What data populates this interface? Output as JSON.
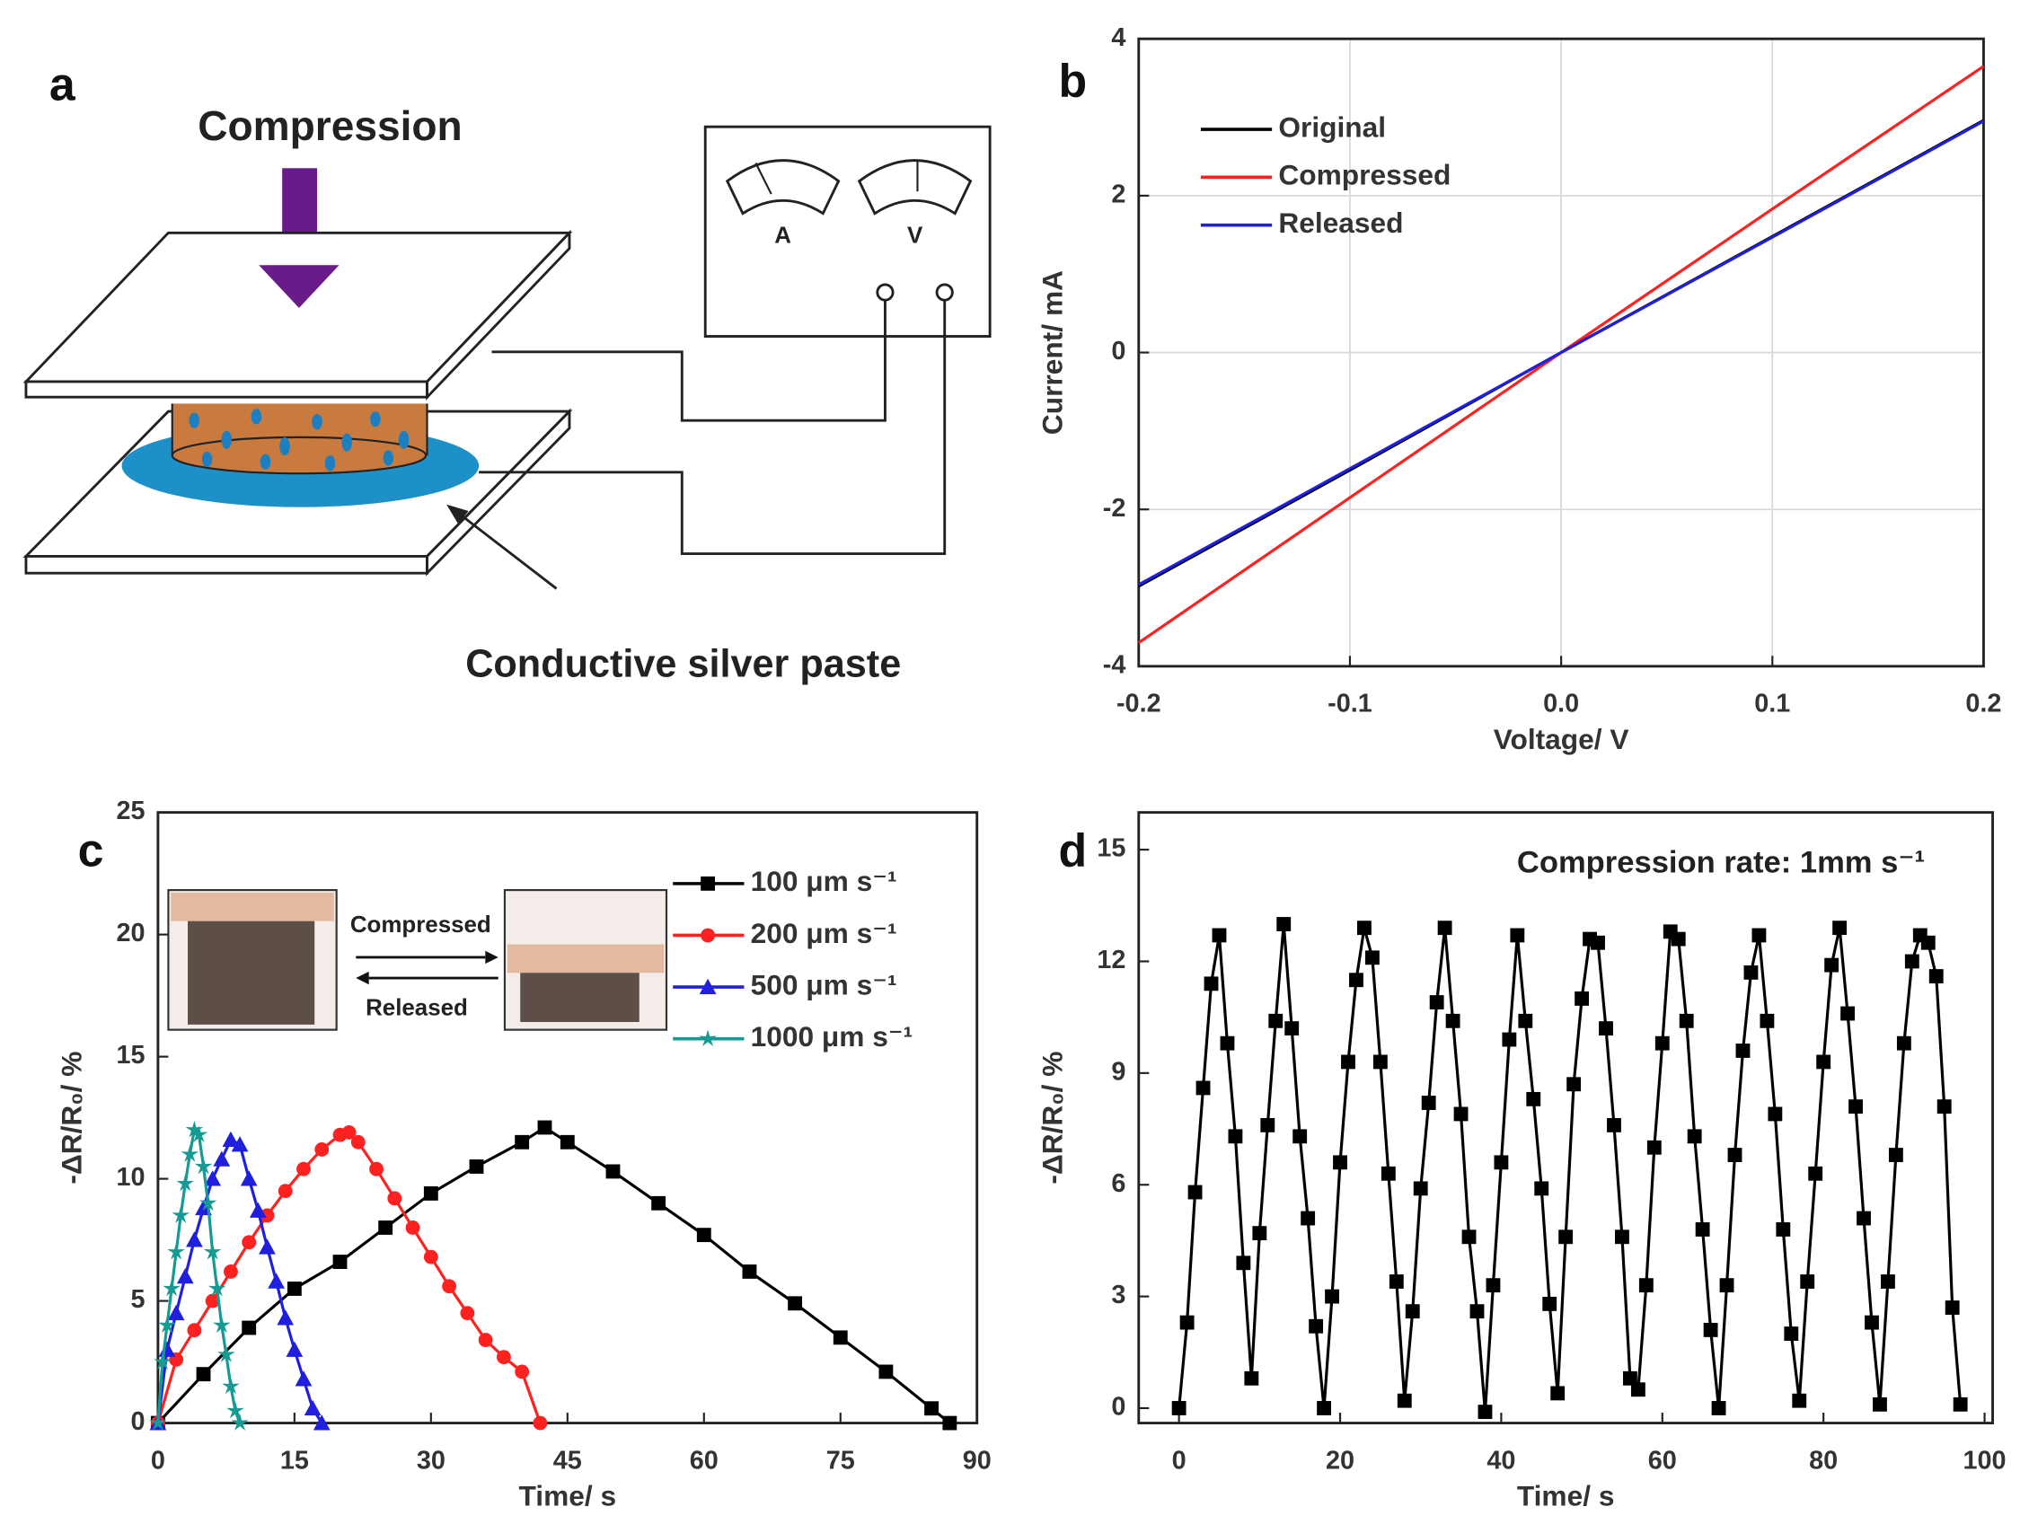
{
  "diagram": {
    "panel_label": "a",
    "title": "Compression",
    "meter_labels": [
      "A",
      "V"
    ],
    "callout": "Conductive silver paste"
  },
  "chart_data": [
    {
      "type": "line",
      "panel_label": "b",
      "xlabel": "Voltage/ V",
      "ylabel": "Current/ mA",
      "xlim": [
        -0.2,
        0.2
      ],
      "ylim": [
        -4,
        4
      ],
      "xticks": [
        -0.2,
        -0.1,
        {
          "value": 0,
          "label": "0.0"
        },
        0.1,
        0.2
      ],
      "yticks": [
        -4,
        -2,
        0,
        2,
        4
      ],
      "grid": true,
      "legend": "upper left",
      "x": [
        -0.2,
        -0.1,
        0,
        0.1,
        0.2
      ],
      "series": [
        {
          "name": "Original",
          "color": "#000000",
          "values": [
            -2.98,
            -1.5,
            0,
            1.48,
            2.96
          ]
        },
        {
          "name": "Compressed",
          "color": "#ff2020",
          "values": [
            -3.7,
            -1.85,
            0,
            1.83,
            3.65
          ]
        },
        {
          "name": "Released",
          "color": "#1f1fdd",
          "values": [
            -2.96,
            -1.48,
            0,
            1.47,
            2.95
          ]
        }
      ]
    },
    {
      "type": "line",
      "panel_label": "c",
      "xlabel": "Time/ s",
      "ylabel": "-ΔR/R₀/ %",
      "xlim": [
        0,
        90
      ],
      "ylim": [
        0,
        25
      ],
      "xticks": [
        0,
        15,
        30,
        45,
        60,
        75,
        90
      ],
      "yticks": [
        0,
        5,
        10,
        15,
        20,
        25
      ],
      "grid": false,
      "legend": "upper right",
      "annotations": [
        "Compressed",
        "Released"
      ],
      "series": [
        {
          "name": "100 μm s⁻¹",
          "color": "#000000",
          "marker": "square",
          "x": [
            0,
            5,
            10,
            15,
            20,
            25,
            30,
            35,
            40,
            42.5,
            45,
            50,
            55,
            60,
            65,
            70,
            75,
            80,
            85,
            87
          ],
          "values": [
            0,
            2,
            3.9,
            5.5,
            6.6,
            8,
            9.4,
            10.5,
            11.5,
            12.1,
            11.5,
            10.3,
            9,
            7.7,
            6.2,
            4.9,
            3.5,
            2.1,
            0.6,
            0
          ]
        },
        {
          "name": "200 μm s⁻¹",
          "color": "#ff2020",
          "marker": "circle",
          "x": [
            0,
            2,
            4,
            6,
            8,
            10,
            12,
            14,
            16,
            18,
            20,
            21,
            22,
            24,
            26,
            28,
            30,
            32,
            34,
            36,
            38,
            40,
            42
          ],
          "values": [
            0,
            2.6,
            3.8,
            5,
            6.2,
            7.4,
            8.5,
            9.5,
            10.4,
            11.2,
            11.8,
            11.9,
            11.5,
            10.4,
            9.2,
            8,
            6.8,
            5.6,
            4.5,
            3.4,
            2.7,
            2.1,
            0
          ]
        },
        {
          "name": "500 μm s⁻¹",
          "color": "#1f1fdd",
          "marker": "triangle",
          "x": [
            0,
            1,
            2,
            3,
            4,
            5,
            6,
            7,
            8,
            9,
            10,
            11,
            12,
            13,
            14,
            15,
            16,
            17,
            18
          ],
          "values": [
            0,
            3,
            4.5,
            6,
            7.5,
            8.8,
            10,
            10.8,
            11.6,
            11.4,
            10,
            8.7,
            7.2,
            5.8,
            4.3,
            3,
            1.8,
            0.6,
            0
          ]
        },
        {
          "name": "1000 μm s⁻¹",
          "color": "#159a94",
          "marker": "star",
          "x": [
            0,
            0.5,
            1,
            1.5,
            2,
            2.5,
            3,
            3.5,
            4,
            4.5,
            5,
            5.5,
            6,
            6.5,
            7,
            7.5,
            8,
            8.5,
            9
          ],
          "values": [
            0,
            2.5,
            4,
            5.5,
            7,
            8.5,
            9.8,
            11,
            12,
            11.8,
            10.5,
            9,
            7,
            5.5,
            4,
            2.8,
            1.5,
            0.5,
            0
          ]
        }
      ]
    },
    {
      "type": "line",
      "panel_label": "d",
      "xlabel": "Time/ s",
      "ylabel": "-ΔR/R₀/ %",
      "annotations": [
        "Compression rate: 1mm s⁻¹"
      ],
      "xlim": [
        -5,
        101
      ],
      "ylim": [
        -0.4,
        16
      ],
      "xticks": [
        0,
        20,
        40,
        60,
        80,
        100
      ],
      "yticks": [
        0,
        3,
        6,
        9,
        12,
        15
      ],
      "grid": false,
      "x": [
        0,
        1,
        2,
        3,
        4,
        5,
        6,
        7,
        8,
        9,
        10,
        11,
        12,
        13,
        14,
        15,
        16,
        17,
        18,
        19,
        20,
        21,
        22,
        23,
        24,
        25,
        26,
        27,
        28,
        29,
        30,
        31,
        32,
        33,
        34,
        35,
        36,
        37,
        38,
        39,
        40,
        41,
        42,
        43,
        44,
        45,
        46,
        47,
        48,
        49,
        50,
        51,
        52,
        53,
        54,
        55,
        56,
        57,
        58,
        59,
        60,
        61,
        62,
        63,
        64,
        65,
        66,
        67,
        68,
        69,
        70,
        71,
        72,
        73,
        74,
        75,
        76,
        77,
        78,
        79,
        80,
        81,
        82,
        83,
        84,
        85,
        86,
        87,
        88,
        89,
        90,
        91,
        92,
        93,
        94,
        95,
        96,
        97
      ],
      "series": [
        {
          "color": "#000000",
          "marker": "square",
          "values": [
            0,
            2.3,
            5.8,
            8.6,
            11.4,
            12.7,
            9.8,
            7.3,
            3.9,
            0.8,
            4.7,
            7.6,
            10.4,
            13.0,
            10.2,
            7.3,
            5.1,
            2.2,
            0,
            3.0,
            6.6,
            9.3,
            11.5,
            12.9,
            12.1,
            9.3,
            6.3,
            3.4,
            0.2,
            2.6,
            5.9,
            8.2,
            10.9,
            12.9,
            10.4,
            7.9,
            4.6,
            2.6,
            -0.1,
            3.3,
            6.6,
            9.9,
            12.7,
            10.4,
            8.3,
            5.9,
            2.8,
            0.4,
            4.6,
            8.7,
            11.0,
            12.6,
            12.5,
            10.2,
            7.6,
            4.6,
            0.8,
            0.5,
            3.3,
            7.0,
            9.8,
            12.8,
            12.6,
            10.4,
            7.3,
            4.8,
            2.1,
            0,
            3.3,
            6.8,
            9.6,
            11.7,
            12.7,
            10.4,
            7.9,
            4.8,
            2.0,
            0.2,
            3.4,
            6.3,
            9.3,
            11.9,
            12.9,
            10.6,
            8.1,
            5.1,
            2.3,
            0.1,
            3.4,
            6.8,
            9.8,
            12.0,
            12.7,
            12.5,
            11.6,
            8.1,
            2.7,
            0.1
          ]
        }
      ]
    }
  ]
}
